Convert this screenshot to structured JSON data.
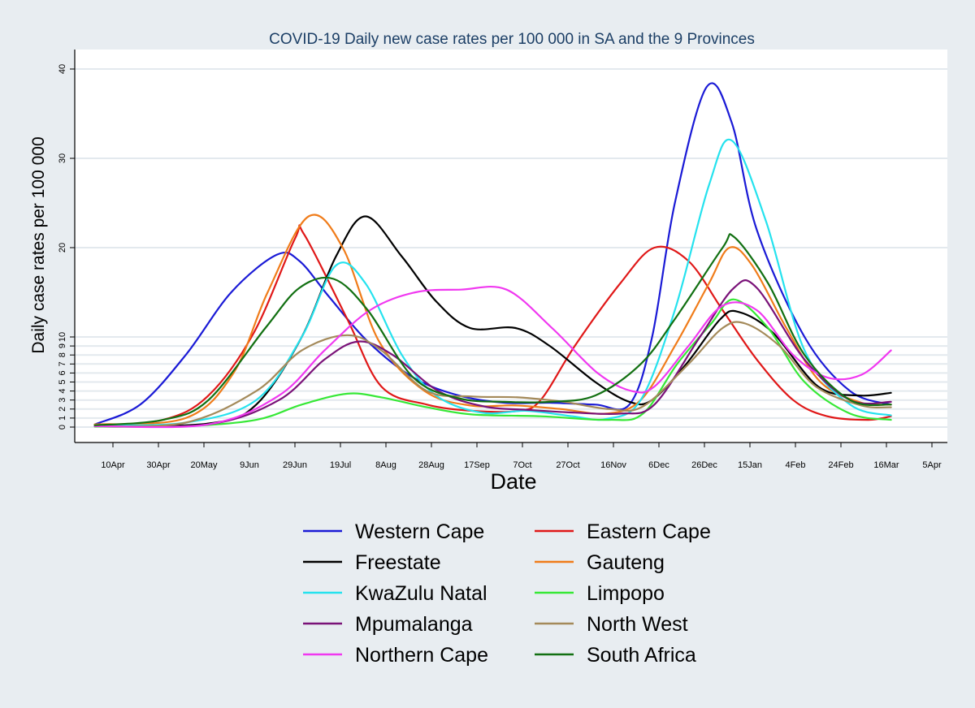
{
  "chart_data": {
    "type": "line",
    "title": "COVID-19 Daily new case rates  per 100 000 in SA and the 9 Provinces",
    "xlabel": "Date",
    "ylabel": "Daily case rates per 100 000",
    "x_ticks": [
      "10Apr",
      "30Apr",
      "20May",
      "9Jun",
      "29Jun",
      "19Jul",
      "8Aug",
      "28Aug",
      "17Sep",
      "7Oct",
      "27Oct",
      "16Nov",
      "6Dec",
      "26Dec",
      "15Jan",
      "4Feb",
      "24Feb",
      "16Mar",
      "5Apr"
    ],
    "y_ticks": [
      0,
      1,
      2,
      3,
      4,
      5,
      6,
      7,
      8,
      9,
      10,
      20,
      30,
      40
    ],
    "ylim": [
      0,
      41
    ],
    "grid": true,
    "legend_position": "bottom",
    "series": [
      {
        "name": "Western Cape",
        "color": "#1a1ad6",
        "points": [
          [
            "2Apr",
            0.3
          ],
          [
            "22Apr",
            2.5
          ],
          [
            "12May",
            8
          ],
          [
            "1Jun",
            15
          ],
          [
            "21Jun",
            19.2
          ],
          [
            "1Jul",
            18.5
          ],
          [
            "14Jul",
            14.5
          ],
          [
            "31Jul",
            9.5
          ],
          [
            "20Aug",
            5.5
          ],
          [
            "9Sep",
            3.5
          ],
          [
            "29Sep",
            2.7
          ],
          [
            "19Oct",
            2.7
          ],
          [
            "8Nov",
            2.5
          ],
          [
            "23Nov",
            2.5
          ],
          [
            "3Dec",
            10
          ],
          [
            "13Dec",
            25
          ],
          [
            "27Dec",
            38
          ],
          [
            "7Jan",
            34
          ],
          [
            "18Jan",
            22
          ],
          [
            "8Feb",
            10
          ],
          [
            "28Feb",
            4
          ],
          [
            "18Mar",
            2.5
          ]
        ]
      },
      {
        "name": "Eastern Cape",
        "color": "#e01818",
        "points": [
          [
            "2Apr",
            0.2
          ],
          [
            "2May",
            0.8
          ],
          [
            "22May",
            3.5
          ],
          [
            "11Jun",
            10.5
          ],
          [
            "29Jun",
            21
          ],
          [
            "3Jul",
            21.5
          ],
          [
            "22Jul",
            12
          ],
          [
            "6Aug",
            4.5
          ],
          [
            "26Aug",
            2.5
          ],
          [
            "15Sep",
            1.8
          ],
          [
            "5Oct",
            1.8
          ],
          [
            "15Oct",
            3
          ],
          [
            "30Oct",
            9
          ],
          [
            "19Nov",
            16
          ],
          [
            "4Dec",
            20
          ],
          [
            "19Dec",
            18.5
          ],
          [
            "3Jan",
            13
          ],
          [
            "18Jan",
            7.5
          ],
          [
            "3Feb",
            3
          ],
          [
            "18Feb",
            1.2
          ],
          [
            "8Mar",
            0.8
          ],
          [
            "18Mar",
            1.2
          ]
        ]
      },
      {
        "name": "Freestate",
        "color": "#000000",
        "points": [
          [
            "2Apr",
            0.1
          ],
          [
            "22May",
            0.4
          ],
          [
            "12Jun",
            2.5
          ],
          [
            "2Jul",
            10
          ],
          [
            "17Jul",
            19
          ],
          [
            "30Jul",
            23.5
          ],
          [
            "15Aug",
            19
          ],
          [
            "30Aug",
            14
          ],
          [
            "14Sep",
            11
          ],
          [
            "4Oct",
            11
          ],
          [
            "19Oct",
            9
          ],
          [
            "8Nov",
            5
          ],
          [
            "23Nov",
            2.8
          ],
          [
            "3Dec",
            3
          ],
          [
            "18Dec",
            7
          ],
          [
            "2Jan",
            12
          ],
          [
            "10Jan",
            12.8
          ],
          [
            "25Jan",
            10.5
          ],
          [
            "14Feb",
            4.5
          ],
          [
            "4Mar",
            3.5
          ],
          [
            "18Mar",
            3.8
          ]
        ]
      },
      {
        "name": "Gauteng",
        "color": "#f07c1a",
        "points": [
          [
            "2Apr",
            0.3
          ],
          [
            "12May",
            1
          ],
          [
            "2Jun",
            6
          ],
          [
            "17Jun",
            15
          ],
          [
            "5Jul",
            23.5
          ],
          [
            "20Jul",
            20
          ],
          [
            "5Aug",
            9.5
          ],
          [
            "25Aug",
            4
          ],
          [
            "14Sep",
            2.4
          ],
          [
            "4Oct",
            2.4
          ],
          [
            "24Oct",
            2
          ],
          [
            "13Nov",
            1.5
          ],
          [
            "28Nov",
            3
          ],
          [
            "13Dec",
            9
          ],
          [
            "28Dec",
            16
          ],
          [
            "6Jan",
            20
          ],
          [
            "16Jan",
            18
          ],
          [
            "31Jan",
            11
          ],
          [
            "15Feb",
            5
          ],
          [
            "5Mar",
            2.7
          ],
          [
            "18Mar",
            2.5
          ]
        ]
      },
      {
        "name": "KwaZulu Natal",
        "color": "#25e2ee",
        "points": [
          [
            "2Apr",
            0.2
          ],
          [
            "12May",
            0.5
          ],
          [
            "12Jun",
            3
          ],
          [
            "2Jul",
            10
          ],
          [
            "17Jul",
            18
          ],
          [
            "30Jul",
            16
          ],
          [
            "15Aug",
            8
          ],
          [
            "30Aug",
            3.5
          ],
          [
            "19Sep",
            1.6
          ],
          [
            "9Oct",
            1.8
          ],
          [
            "29Oct",
            1.2
          ],
          [
            "13Nov",
            0.9
          ],
          [
            "28Nov",
            3
          ],
          [
            "13Dec",
            13
          ],
          [
            "28Dec",
            27
          ],
          [
            "7Jan",
            32
          ],
          [
            "22Jan",
            23
          ],
          [
            "8Feb",
            8.5
          ],
          [
            "28Feb",
            2.5
          ],
          [
            "18Mar",
            1.3
          ]
        ]
      },
      {
        "name": "Limpopo",
        "color": "#36e836",
        "points": [
          [
            "2Apr",
            0.05
          ],
          [
            "12May",
            0.1
          ],
          [
            "12Jun",
            0.8
          ],
          [
            "2Jul",
            2.5
          ],
          [
            "22Jul",
            3.7
          ],
          [
            "6Aug",
            3.3
          ],
          [
            "26Aug",
            2.2
          ],
          [
            "15Sep",
            1.4
          ],
          [
            "15Oct",
            1.2
          ],
          [
            "14Nov",
            0.8
          ],
          [
            "29Nov",
            1.5
          ],
          [
            "14Dec",
            7
          ],
          [
            "29Dec",
            11.5
          ],
          [
            "8Jan",
            14.2
          ],
          [
            "23Jan",
            11
          ],
          [
            "8Feb",
            5
          ],
          [
            "28Feb",
            1.5
          ],
          [
            "18Mar",
            0.8
          ]
        ]
      },
      {
        "name": "Mpumalanga",
        "color": "#7a1278",
        "points": [
          [
            "2Apr",
            0.1
          ],
          [
            "22May",
            0.3
          ],
          [
            "22Jun",
            3
          ],
          [
            "12Jul",
            7.5
          ],
          [
            "27Jul",
            9.5
          ],
          [
            "11Aug",
            8
          ],
          [
            "31Aug",
            4
          ],
          [
            "20Sep",
            2.3
          ],
          [
            "10Oct",
            1.9
          ],
          [
            "30Oct",
            1.6
          ],
          [
            "19Nov",
            1.5
          ],
          [
            "4Dec",
            2.5
          ],
          [
            "24Dec",
            10
          ],
          [
            "8Jan",
            15.5
          ],
          [
            "18Jan",
            15.5
          ],
          [
            "8Feb",
            7.5
          ],
          [
            "28Feb",
            3
          ],
          [
            "18Mar",
            2.8
          ]
        ]
      },
      {
        "name": "North West",
        "color": "#a48a5a",
        "points": [
          [
            "2Apr",
            0.1
          ],
          [
            "12May",
            0.5
          ],
          [
            "12Jun",
            4
          ],
          [
            "2Jul",
            8.5
          ],
          [
            "22Jul",
            10.2
          ],
          [
            "6Aug",
            8.5
          ],
          [
            "26Aug",
            4
          ],
          [
            "15Sep",
            3.4
          ],
          [
            "5Oct",
            3.3
          ],
          [
            "25Oct",
            2.8
          ],
          [
            "14Nov",
            2
          ],
          [
            "29Nov",
            2.3
          ],
          [
            "19Dec",
            7
          ],
          [
            "3Jan",
            11
          ],
          [
            "13Jan",
            11.5
          ],
          [
            "28Jan",
            9
          ],
          [
            "13Feb",
            4.5
          ],
          [
            "5Mar",
            2.4
          ],
          [
            "18Mar",
            2.2
          ]
        ]
      },
      {
        "name": "Northern Cape",
        "color": "#f038f0",
        "points": [
          [
            "2Apr",
            0.1
          ],
          [
            "22May",
            0.3
          ],
          [
            "22Jun",
            3.5
          ],
          [
            "12Jul",
            8.5
          ],
          [
            "1Aug",
            13
          ],
          [
            "21Aug",
            15
          ],
          [
            "10Sep",
            15.3
          ],
          [
            "30Sep",
            15.3
          ],
          [
            "20Oct",
            11
          ],
          [
            "9Nov",
            6
          ],
          [
            "24Nov",
            4
          ],
          [
            "4Dec",
            4.5
          ],
          [
            "19Dec",
            9
          ],
          [
            "3Jan",
            13.5
          ],
          [
            "18Jan",
            13
          ],
          [
            "3Feb",
            8
          ],
          [
            "18Feb",
            5.5
          ],
          [
            "5Mar",
            5.8
          ],
          [
            "18Mar",
            8.5
          ]
        ]
      },
      {
        "name": "South Africa",
        "color": "#127012",
        "points": [
          [
            "2Apr",
            0.2
          ],
          [
            "2May",
            0.8
          ],
          [
            "22May",
            3
          ],
          [
            "16Jun",
            11
          ],
          [
            "1Jul",
            15.5
          ],
          [
            "16Jul",
            16.5
          ],
          [
            "31Jul",
            13
          ],
          [
            "20Aug",
            5.5
          ],
          [
            "9Sep",
            3.2
          ],
          [
            "29Sep",
            2.8
          ],
          [
            "19Oct",
            2.8
          ],
          [
            "8Nov",
            3.5
          ],
          [
            "28Nov",
            7
          ],
          [
            "13Dec",
            12
          ],
          [
            "3Jan",
            20
          ],
          [
            "8Jan",
            21.2
          ],
          [
            "23Jan",
            16
          ],
          [
            "8Feb",
            8
          ],
          [
            "28Feb",
            3
          ],
          [
            "18Mar",
            2.5
          ]
        ]
      }
    ]
  }
}
